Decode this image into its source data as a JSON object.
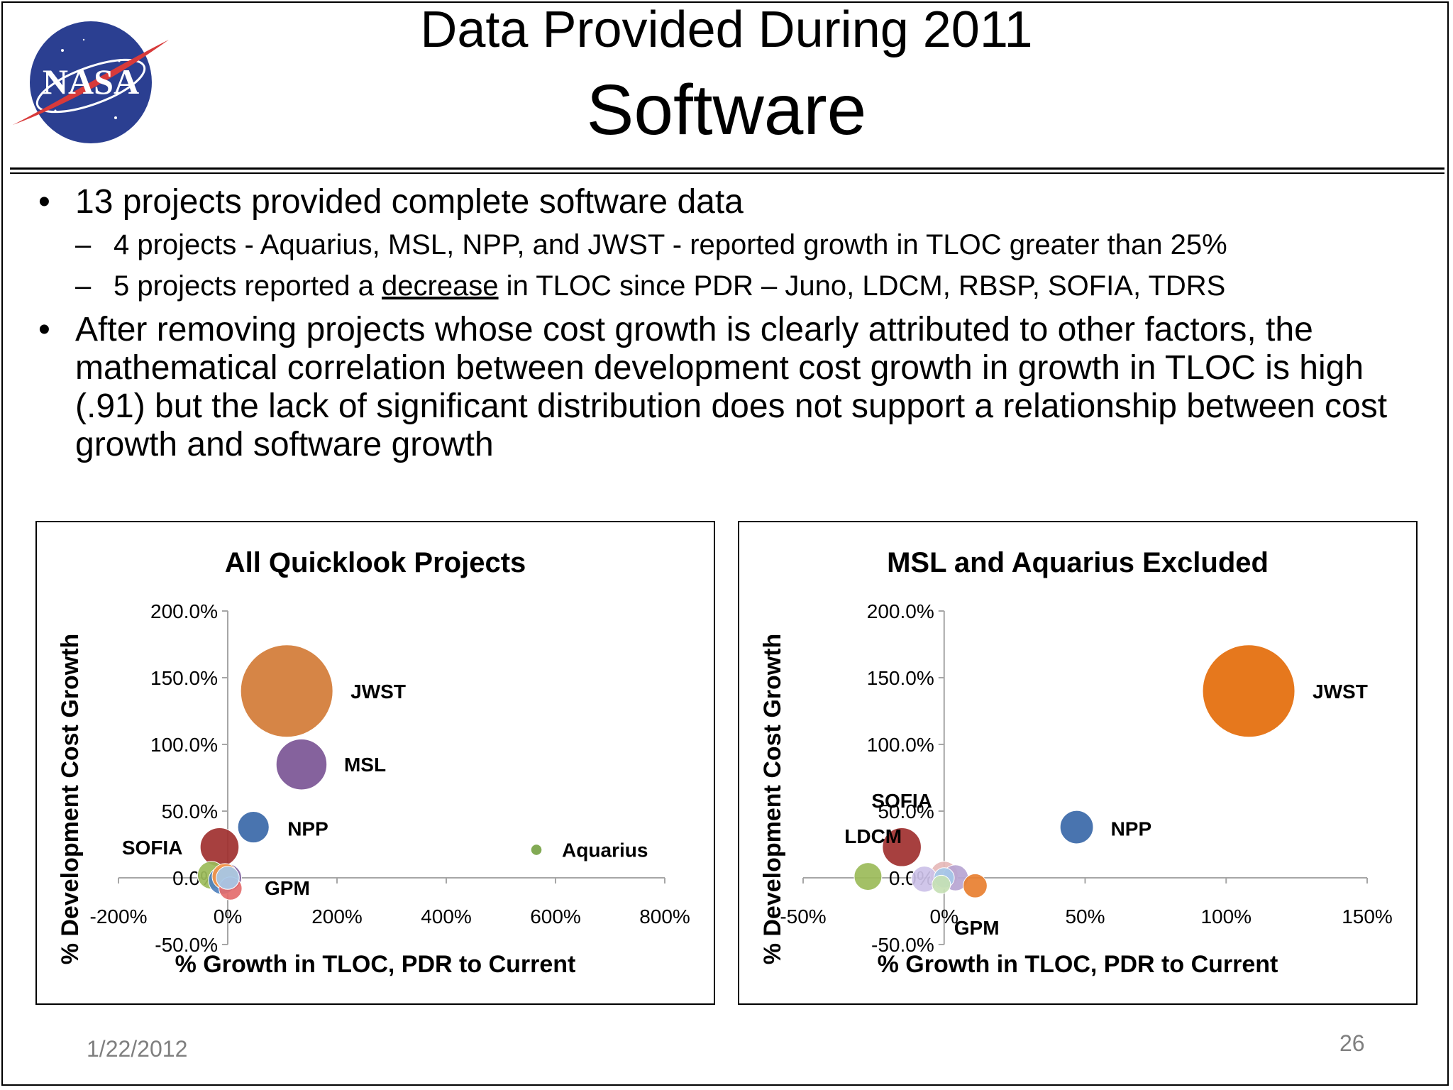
{
  "slide": {
    "title": "Data Provided During 2011",
    "subtitle": "Software",
    "logo_text": "NASA",
    "date": "1/22/2012",
    "page_number": "26"
  },
  "bullets": {
    "b1": "13 projects provided complete software data",
    "b1_sub1": "4 projects - Aquarius, MSL, NPP, and JWST - reported growth in TLOC greater than 25%",
    "b1_sub2_pre": "5 projects reported a ",
    "b1_sub2_underlined": "decrease",
    "b1_sub2_post": " in TLOC since PDR – Juno, LDCM, RBSP, SOFIA, TDRS",
    "b2": "After removing projects whose cost growth is clearly attributed to other factors, the mathematical correlation between development cost growth in growth in TLOC is high (.91) but the lack of significant distribution does not support a relationship between cost growth and software growth"
  },
  "colors": {
    "logo_blue": "#2b3f91",
    "logo_red": "#d83a3a",
    "axis": "#a6a6a6",
    "footer_text": "#7f7f7f"
  },
  "chart_data": [
    {
      "type": "scatter",
      "title": "All Quicklook Projects",
      "xlabel": "% Growth in TLOC, PDR to Current",
      "ylabel": "% Development Cost Growth",
      "xlim": [
        -200,
        800
      ],
      "ylim": [
        -50,
        200
      ],
      "xticks": [
        -200,
        0,
        200,
        400,
        600,
        800
      ],
      "xtick_labels": [
        "-200%",
        "0%",
        "200%",
        "400%",
        "600%",
        "800%"
      ],
      "yticks": [
        -50,
        0,
        50,
        100,
        150,
        200
      ],
      "ytick_labels": [
        "-50.0%",
        "0.0%",
        "50.0%",
        "100.0%",
        "150.0%",
        "200.0%"
      ],
      "grid": false,
      "legend": "none",
      "points": [
        {
          "label": "",
          "x": -30,
          "y": 2,
          "size": 0.3,
          "color": "#9bbb59"
        },
        {
          "label": "",
          "x": 5,
          "y": -8,
          "size": 0.25,
          "color": "#e46c6c"
        },
        {
          "label": "",
          "x": 0,
          "y": 0,
          "size": 0.3,
          "color": "#8064a2"
        },
        {
          "label": "",
          "x": -10,
          "y": -2,
          "size": 0.3,
          "color": "#4f81bd"
        },
        {
          "label": "",
          "x": -5,
          "y": 1,
          "size": 0.28,
          "color": "#f79646"
        },
        {
          "label": "SOFIA",
          "x": -15,
          "y": 23,
          "size": 0.42,
          "color": "#a0302f"
        },
        {
          "label": "GPM",
          "x": 0,
          "y": 0,
          "size": 0.25,
          "color": "#a5c8e8"
        },
        {
          "label": "NPP",
          "x": 47,
          "y": 38,
          "size": 0.34,
          "color": "#3a68a8"
        },
        {
          "label": "MSL",
          "x": 135,
          "y": 85,
          "size": 0.55,
          "color": "#7b5595"
        },
        {
          "label": "JWST",
          "x": 108,
          "y": 140,
          "size": 1.0,
          "color": "#d27b36"
        },
        {
          "label": "Aquarius",
          "x": 565,
          "y": 21,
          "size": 0.12,
          "color": "#77a345"
        }
      ]
    },
    {
      "type": "scatter",
      "title": "MSL and Aquarius Excluded",
      "xlabel": "% Growth in TLOC, PDR to Current",
      "ylabel": "% Development Cost Growth",
      "xlim": [
        -50,
        150
      ],
      "ylim": [
        -50,
        200
      ],
      "xticks": [
        -50,
        0,
        50,
        100,
        150
      ],
      "xtick_labels": [
        "-50%",
        "0%",
        "50%",
        "100%",
        "150%"
      ],
      "yticks": [
        -50,
        0,
        50,
        100,
        150,
        200
      ],
      "ytick_labels": [
        "-50.0%",
        "0.0%",
        "50.0%",
        "100.0%",
        "150.0%",
        "200.0%"
      ],
      "grid": false,
      "legend": "none",
      "points": [
        {
          "label": "",
          "x": -27,
          "y": 1,
          "size": 0.3,
          "color": "#9bbb59"
        },
        {
          "label": "",
          "x": -7,
          "y": -1,
          "size": 0.28,
          "color": "#ccc1e8"
        },
        {
          "label": "",
          "x": 4,
          "y": 0,
          "size": 0.28,
          "color": "#b7a5d3"
        },
        {
          "label": "",
          "x": 0,
          "y": 2,
          "size": 0.3,
          "color": "#e6b9b8"
        },
        {
          "label": "",
          "x": -1,
          "y": -5,
          "size": 0.2,
          "color": "#c5e0b4"
        },
        {
          "label": "",
          "x": 11,
          "y": -6,
          "size": 0.26,
          "color": "#e87f30"
        },
        {
          "label": "LDCM",
          "x": -15,
          "y": 23,
          "size": 0.42,
          "color": "#a0302f"
        },
        {
          "label": "SOFIA",
          "x": -15,
          "y": 23,
          "size": 0,
          "color": "#a0302f"
        },
        {
          "label": "GPM",
          "x": 0,
          "y": 0,
          "size": 0.22,
          "color": "#a5c8e8"
        },
        {
          "label": "NPP",
          "x": 47,
          "y": 38,
          "size": 0.36,
          "color": "#3a68a8"
        },
        {
          "label": "JWST",
          "x": 108,
          "y": 140,
          "size": 1.0,
          "color": "#e46c0a"
        }
      ]
    }
  ]
}
